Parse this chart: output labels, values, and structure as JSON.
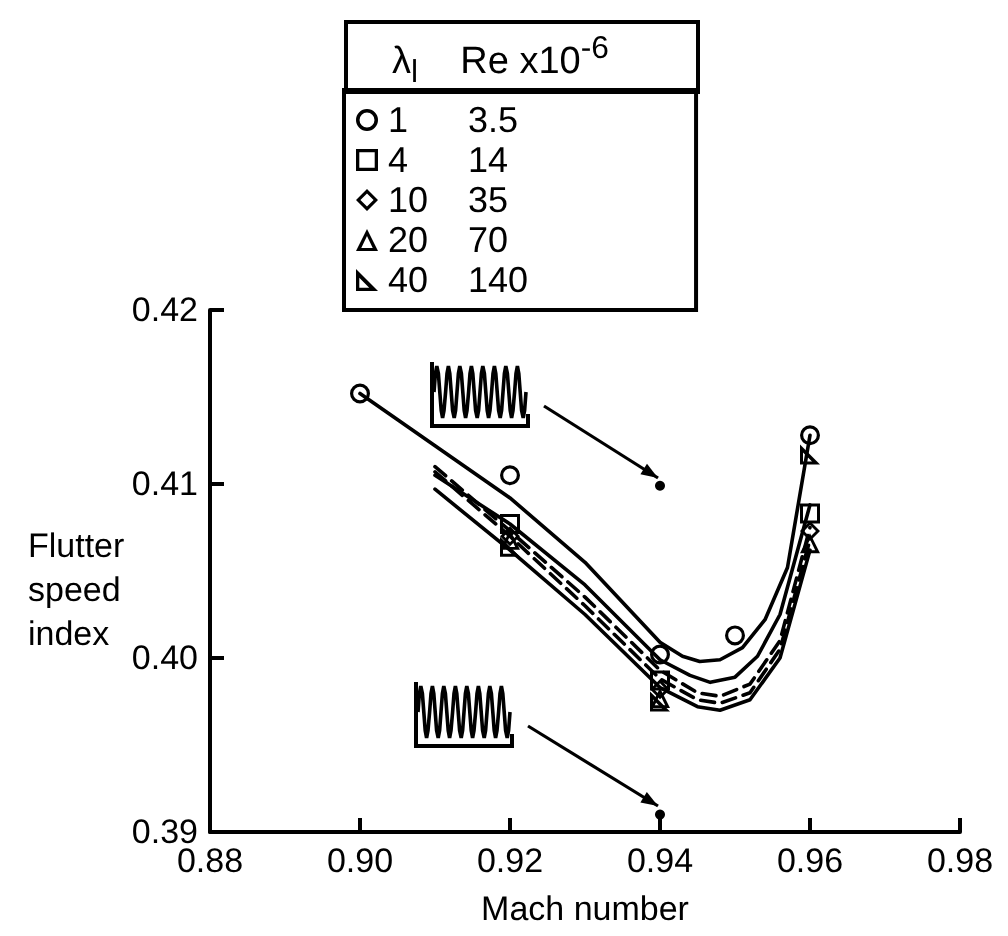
{
  "chart_data": {
    "type": "scatter",
    "xlabel": "Mach number",
    "ylabel": "Flutter speed index",
    "legend_title": "λ$_{l}$    Re x10$^{-6}$",
    "legend": "top",
    "grid": false,
    "xlim": [
      0.88,
      0.98
    ],
    "xticks": [
      0.88,
      {
        "value": 0.9,
        "label": "0.90"
      },
      0.92,
      0.94,
      0.96,
      0.98
    ],
    "ylim": [
      0.39,
      0.42
    ],
    "yticks": [
      0.39,
      {
        "value": 0.4,
        "label": "0.40"
      },
      0.41,
      0.42
    ],
    "series": [
      {
        "name": "1 3.5",
        "marker": "circle",
        "color": "#000000",
        "x": [
          0.9,
          0.92,
          0.94,
          0.95,
          0.96
        ],
        "values": [
          0.4152,
          0.4105,
          0.4002,
          0.4013,
          0.4128
        ]
      },
      {
        "name": "4 14",
        "marker": "square",
        "color": "#000000",
        "x": [
          0.92,
          0.94,
          0.96
        ],
        "values": [
          0.4077,
          0.3987,
          0.4083
        ]
      },
      {
        "name": "10 35",
        "marker": "diamond",
        "color": "#000000",
        "x": [
          0.92,
          0.94,
          0.96
        ],
        "values": [
          0.407,
          0.3982,
          0.4073
        ]
      },
      {
        "name": "20 70",
        "marker": "triangle",
        "color": "#000000",
        "x": [
          0.92,
          0.94,
          0.96
        ],
        "values": [
          0.4068,
          0.3977,
          0.4066
        ]
      },
      {
        "name": "40 140",
        "color": "#000000",
        "x": [
          0.92,
          0.94,
          0.96
        ],
        "values": [
          0.4064,
          0.3975,
          0.4117
        ]
      },
      {
        "type": "line",
        "marker": "none",
        "line_style": "solid",
        "color": "#000000",
        "x": [
          0.9,
          0.91,
          0.92,
          0.93,
          0.935,
          0.94,
          0.943,
          0.9453,
          0.948,
          0.951,
          0.954,
          0.957,
          0.96
        ],
        "values": [
          0.4152,
          0.4122,
          0.4092,
          0.4055,
          0.4032,
          0.4009,
          0.4001,
          0.3998,
          0.3999,
          0.4006,
          0.4022,
          0.4052,
          0.4128
        ]
      },
      {
        "type": "line",
        "marker": "none",
        "line_style": "solid",
        "color": "#000000",
        "x": [
          0.91,
          0.92,
          0.93,
          0.94,
          0.944,
          0.9467,
          0.95,
          0.953,
          0.956,
          0.96
        ],
        "values": [
          0.4105,
          0.4077,
          0.4042,
          0.3999,
          0.399,
          0.3986,
          0.3989,
          0.4001,
          0.4025,
          0.4088
        ]
      },
      {
        "type": "line",
        "marker": "none",
        "line_style": "dashed",
        "color": "#000000",
        "x": [
          0.91,
          0.92,
          0.93,
          0.94,
          0.945,
          0.948,
          0.952,
          0.956,
          0.96
        ],
        "values": [
          0.411,
          0.4073,
          0.4035,
          0.3993,
          0.398,
          0.3978,
          0.3985,
          0.401,
          0.4075
        ]
      },
      {
        "type": "line",
        "marker": "none",
        "line_style": "dashed",
        "color": "#000000",
        "x": [
          0.91,
          0.92,
          0.93,
          0.94,
          0.945,
          0.948,
          0.952,
          0.956,
          0.96
        ],
        "values": [
          0.4107,
          0.407,
          0.403,
          0.3988,
          0.3976,
          0.3974,
          0.398,
          0.4005,
          0.4068
        ]
      },
      {
        "type": "line",
        "marker": "none",
        "line_style": "solid",
        "color": "#000000",
        "x": [
          0.91,
          0.92,
          0.93,
          0.94,
          0.945,
          0.948,
          0.952,
          0.956,
          0.96
        ],
        "values": [
          0.4097,
          0.4062,
          0.4025,
          0.3983,
          0.3972,
          0.397,
          0.3976,
          0.4,
          0.4062
        ]
      },
      {
        "marker": "circle",
        "color": "#000000",
        "x": [
          0.94,
          0.94
        ],
        "values": [
          0.4099,
          0.391
        ]
      }
    ]
  }
}
